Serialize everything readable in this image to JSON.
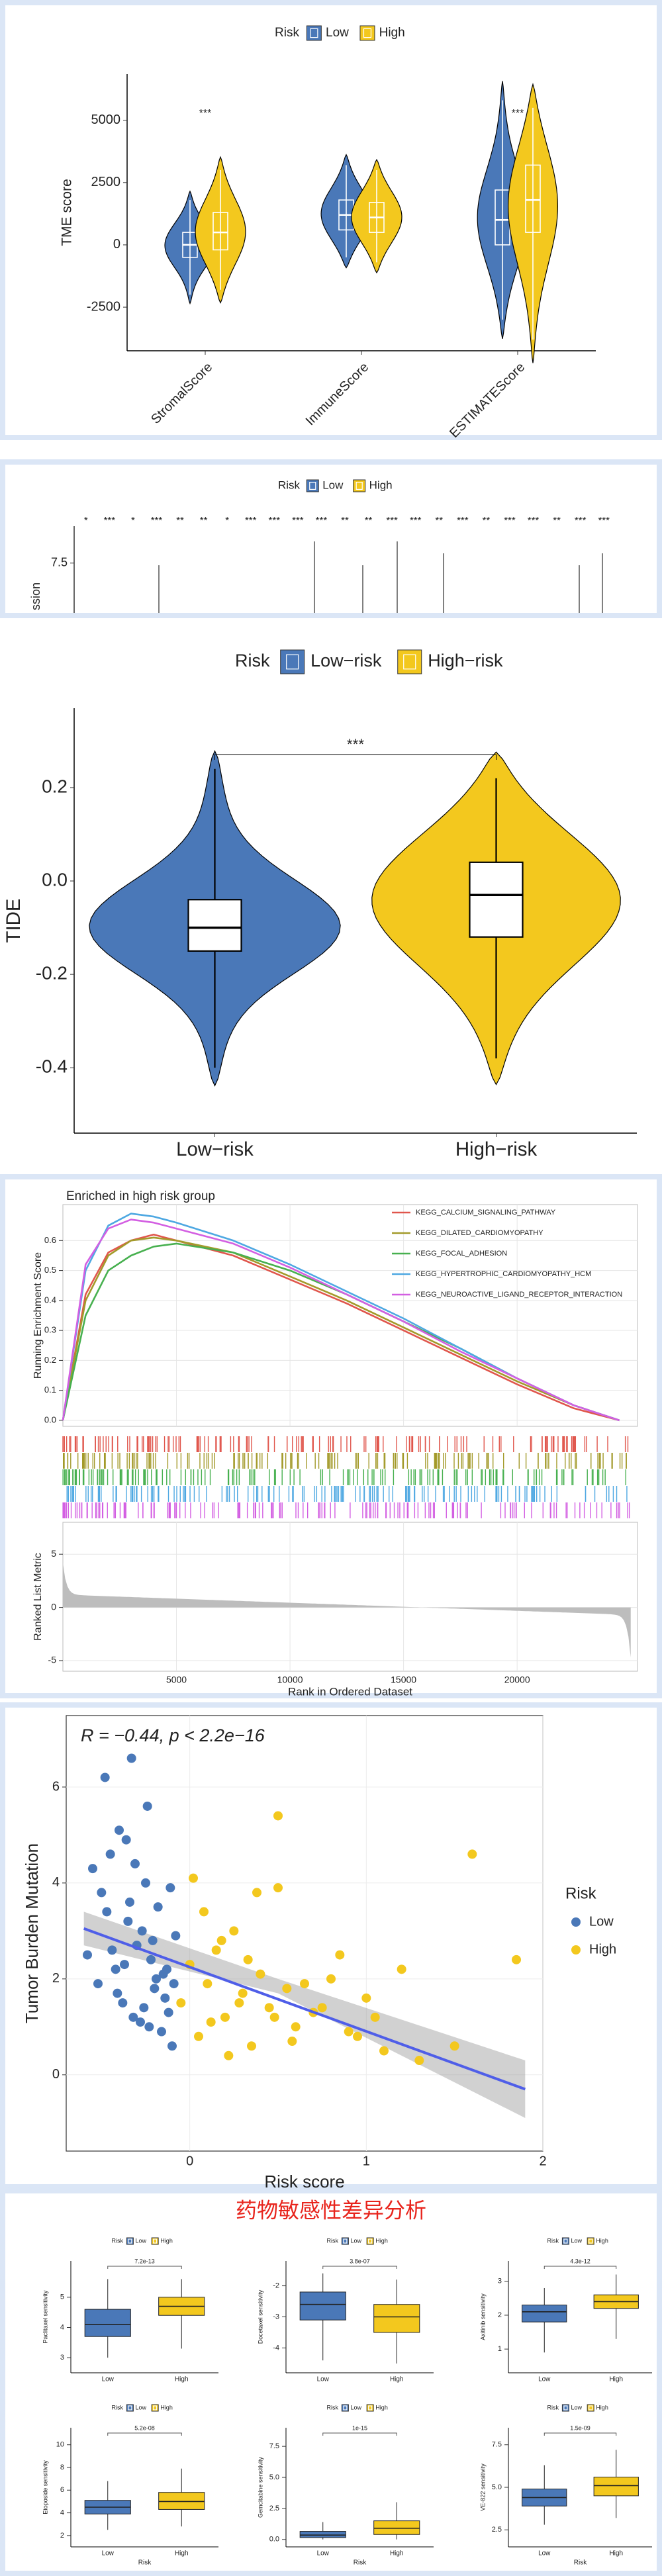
{
  "drug_title": "药物敏感性差异分析",
  "chart_data": [
    {
      "type": "violin",
      "legend_title": "Risk",
      "ylabel": "TME score",
      "categories": [
        "StromalScore",
        "ImmuneScore",
        "ESTIMATEScore"
      ],
      "annotations": [
        "***",
        null,
        "***"
      ],
      "series": [
        {
          "name": "Low",
          "color": "#4a78b8",
          "values": [
            {
              "min": -2000,
              "q1": -500,
              "median": 0,
              "q3": 500,
              "max": 1800
            },
            {
              "min": -500,
              "q1": 600,
              "median": 1200,
              "q3": 1800,
              "max": 3200
            },
            {
              "min": -3000,
              "q1": 0,
              "median": 1000,
              "q3": 2200,
              "max": 5800
            }
          ]
        },
        {
          "name": "High",
          "color": "#f3c81e",
          "values": [
            {
              "min": -1800,
              "q1": -200,
              "median": 500,
              "q3": 1300,
              "max": 3000
            },
            {
              "min": -700,
              "q1": 500,
              "median": 1100,
              "q3": 1700,
              "max": 3000
            },
            {
              "min": -3800,
              "q1": 500,
              "median": 1800,
              "q3": 3200,
              "max": 5500
            }
          ]
        }
      ],
      "box_fill": "none",
      "box_stroke": "#ffffff",
      "ylim": [
        -4250,
        6850
      ],
      "yticks": [
        -2500,
        0,
        2500,
        5000
      ]
    },
    {
      "type": "box_strip",
      "legend_title": "Risk",
      "legend": [
        "Low",
        "High"
      ],
      "colors": [
        "#4a78b8",
        "#f3c81e"
      ],
      "annotations": [
        "*",
        "***",
        "*",
        "***",
        "**",
        "**",
        "*",
        "***",
        "***",
        "***",
        "***",
        "**",
        "**",
        "***",
        "***",
        "**",
        "***",
        "**",
        "***",
        "***",
        "**",
        "***",
        "***"
      ],
      "ylabel": "ssion",
      "ylim": [
        4.8,
        9.5
      ],
      "yticks": [
        7.5
      ]
    },
    {
      "type": "violin",
      "legend_title": "Risk",
      "ylabel": "TIDE",
      "categories": [
        "Low−risk",
        "High−risk"
      ],
      "colors": [
        "#4a78b8",
        "#f3c81e"
      ],
      "annotations": [
        "***"
      ],
      "values": [
        {
          "min": -0.4,
          "q1": -0.15,
          "median": -0.1,
          "q3": -0.04,
          "max": 0.24
        },
        {
          "min": -0.38,
          "q1": -0.12,
          "median": -0.03,
          "q3": 0.04,
          "max": 0.22
        }
      ],
      "box_fill": "#ffffff",
      "box_stroke": "#000000",
      "ylim": [
        -0.54,
        0.37
      ],
      "yticks": [
        -0.4,
        -0.2,
        {
          "value": 0,
          "label": "0.0"
        },
        0.2
      ]
    },
    {
      "type": "gsea",
      "title": "Enriched in high risk group",
      "ylabel": "Running Enrichment Score",
      "ylabel2": "Ranked List Metric",
      "xlabel": "Rank in Ordered Dataset",
      "x": [
        0,
        1000,
        2000,
        3000,
        4000,
        5000,
        7500,
        10000,
        12500,
        15000,
        17500,
        20000,
        22500,
        24500
      ],
      "series": [
        {
          "name": "KEGG_CALCIUM_SIGNALING_PATHWAY",
          "color": "#e0564c",
          "values": [
            0,
            0.42,
            0.56,
            0.6,
            0.62,
            0.6,
            0.55,
            0.47,
            0.39,
            0.3,
            0.21,
            0.12,
            0.04,
            0
          ]
        },
        {
          "name": "KEGG_DILATED_CARDIOMYOPATHY",
          "color": "#a39a2a",
          "values": [
            0,
            0.4,
            0.55,
            0.6,
            0.61,
            0.6,
            0.56,
            0.48,
            0.4,
            0.31,
            0.22,
            0.13,
            0.05,
            0
          ]
        },
        {
          "name": "KEGG_FOCAL_ADHESION",
          "color": "#47b04f",
          "values": [
            0,
            0.35,
            0.5,
            0.55,
            0.58,
            0.59,
            0.56,
            0.5,
            0.42,
            0.33,
            0.24,
            0.14,
            0.05,
            0
          ]
        },
        {
          "name": "KEGG_HYPERTROPHIC_CARDIOMYOPATHY_HCM",
          "color": "#4ea8e2",
          "values": [
            0,
            0.5,
            0.65,
            0.69,
            0.68,
            0.66,
            0.6,
            0.52,
            0.43,
            0.34,
            0.24,
            0.14,
            0.05,
            0
          ]
        },
        {
          "name": "KEGG_NEUROACTIVE_LIGAND_RECEPTOR_INTERACTION",
          "color": "#d35fe2",
          "values": [
            0,
            0.52,
            0.64,
            0.67,
            0.66,
            0.64,
            0.59,
            0.51,
            0.42,
            0.33,
            0.23,
            0.14,
            0.05,
            0
          ]
        }
      ],
      "xlim": [
        0,
        25300
      ],
      "xticks": [
        5000,
        10000,
        15000,
        20000
      ],
      "ylim": [
        -0.02,
        0.72
      ],
      "yticks": [
        {
          "value": 0,
          "label": "0.0"
        },
        0.1,
        0.2,
        0.3,
        0.4,
        0.5,
        0.6
      ],
      "y2lim": [
        -6,
        8
      ],
      "y2ticks": [
        -5,
        0,
        5
      ]
    },
    {
      "type": "scatter",
      "annotation": "R = −0.44, p < 2.2e−16",
      "xlabel": "Risk score",
      "ylabel": "Tumor Burden Mutation",
      "legend_title": "Risk",
      "series": [
        {
          "name": "Low",
          "color": "#4a78b8",
          "x": [
            -0.55,
            -0.5,
            -0.45,
            -0.42,
            -0.4,
            -0.38,
            -0.35,
            -0.33,
            -0.3,
            -0.28,
            -0.25,
            -0.22,
            -0.2,
            -0.18,
            -0.15,
            -0.12,
            -0.1,
            -0.08,
            -0.52,
            -0.48,
            -0.44,
            -0.36,
            -0.32,
            -0.27,
            -0.24,
            -0.19,
            -0.14,
            -0.11,
            -0.47,
            -0.41,
            -0.37,
            -0.31,
            -0.26,
            -0.21,
            -0.16,
            -0.09,
            -0.58,
            -0.34,
            -0.23,
            -0.13
          ],
          "values": [
            4.3,
            3.8,
            4.6,
            2.2,
            5.1,
            1.5,
            3.2,
            6.6,
            2.7,
            1.1,
            4.0,
            2.4,
            1.8,
            3.5,
            2.1,
            1.3,
            0.6,
            2.9,
            1.9,
            6.2,
            2.6,
            4.9,
            1.2,
            3.0,
            5.6,
            2.0,
            1.6,
            3.9,
            3.4,
            1.7,
            2.3,
            4.4,
            1.4,
            2.8,
            0.9,
            1.9,
            2.5,
            3.6,
            1.0,
            2.2
          ]
        },
        {
          "name": "High",
          "color": "#f3c81e",
          "x": [
            -0.05,
            0.0,
            0.05,
            0.1,
            0.15,
            0.2,
            0.25,
            0.3,
            0.35,
            0.4,
            0.45,
            0.5,
            0.55,
            0.6,
            0.7,
            0.8,
            0.9,
            1.0,
            1.1,
            1.2,
            0.02,
            0.08,
            0.12,
            0.18,
            0.22,
            0.28,
            0.33,
            0.38,
            0.48,
            0.58,
            0.65,
            0.75,
            0.85,
            0.95,
            1.05,
            1.3,
            1.5,
            1.6,
            1.85,
            0.5
          ],
          "values": [
            1.5,
            2.3,
            0.8,
            1.9,
            2.6,
            1.2,
            3.0,
            1.7,
            0.6,
            2.1,
            1.4,
            5.4,
            1.8,
            1.0,
            1.3,
            2.0,
            0.9,
            1.6,
            0.5,
            2.2,
            4.1,
            3.4,
            1.1,
            2.8,
            0.4,
            1.5,
            2.4,
            3.8,
            1.2,
            0.7,
            1.9,
            1.4,
            2.5,
            0.8,
            1.2,
            0.3,
            0.6,
            4.6,
            2.4,
            3.9
          ]
        }
      ],
      "fit": {
        "color": "#4f5ee8",
        "x": [
          -0.6,
          1.9
        ],
        "values": [
          3.05,
          -0.3
        ]
      },
      "band": {
        "x": [
          -0.6,
          0.5,
          1.9
        ],
        "lower": [
          2.7,
          1.7,
          -0.9
        ],
        "upper": [
          3.4,
          2.0,
          0.3
        ]
      },
      "grid": true,
      "xlim": [
        -0.7,
        2.0
      ],
      "xticks": [
        0,
        1,
        2
      ],
      "ylim": [
        -1.59,
        7.49
      ],
      "yticks": [
        0,
        2,
        4,
        6
      ]
    },
    {
      "type": "box",
      "legend_title": "Risk",
      "categories": [
        "Low",
        "High"
      ],
      "colors": [
        "#4a78b8",
        "#f3c81e"
      ],
      "ylabel": "Paclitaxel sensitivity",
      "p_label": "7.2e-13",
      "values": [
        {
          "min": 3.0,
          "q1": 3.7,
          "median": 4.1,
          "q3": 4.6,
          "max": 5.6
        },
        {
          "min": 3.3,
          "q1": 4.4,
          "median": 4.7,
          "q3": 5.0,
          "max": 5.6
        }
      ],
      "ylim": [
        2.5,
        6.2
      ],
      "yticks": [
        3,
        4,
        5
      ]
    },
    {
      "type": "box",
      "legend_title": "Risk",
      "categories": [
        "Low",
        "High"
      ],
      "colors": [
        "#4a78b8",
        "#f3c81e"
      ],
      "ylabel": "Docetaxel sensitivity",
      "p_label": "3.8e-07",
      "values": [
        {
          "min": -4.4,
          "q1": -3.1,
          "median": -2.6,
          "q3": -2.2,
          "max": -1.6
        },
        {
          "min": -4.5,
          "q1": -3.5,
          "median": -3.0,
          "q3": -2.6,
          "max": -1.8
        }
      ],
      "ylim": [
        -4.8,
        -1.2
      ],
      "yticks": [
        -4,
        -3,
        -2
      ]
    },
    {
      "type": "box",
      "legend_title": "Risk",
      "categories": [
        "Low",
        "High"
      ],
      "colors": [
        "#4a78b8",
        "#f3c81e"
      ],
      "ylabel": "Axitinib sensitivity",
      "p_label": "4.3e-12",
      "values": [
        {
          "min": 0.9,
          "q1": 1.8,
          "median": 2.1,
          "q3": 2.3,
          "max": 2.8
        },
        {
          "min": 1.3,
          "q1": 2.2,
          "median": 2.4,
          "q3": 2.6,
          "max": 3.2
        }
      ],
      "ylim": [
        0.3,
        3.6
      ],
      "yticks": [
        1,
        2,
        3
      ]
    },
    {
      "type": "box",
      "legend_title": "Risk",
      "categories": [
        "Low",
        "High"
      ],
      "colors": [
        "#4a78b8",
        "#f3c81e"
      ],
      "ylabel": "Etoposide sensitivity",
      "xlabel": "Risk",
      "p_label": "5.2e-08",
      "values": [
        {
          "min": 2.5,
          "q1": 3.9,
          "median": 4.5,
          "q3": 5.1,
          "max": 6.8
        },
        {
          "min": 2.8,
          "q1": 4.3,
          "median": 5.0,
          "q3": 5.8,
          "max": 7.9
        }
      ],
      "ylim": [
        1,
        11.5
      ],
      "yticks": [
        2,
        4,
        6,
        8,
        10
      ]
    },
    {
      "type": "box",
      "legend_title": "Risk",
      "categories": [
        "Low",
        "High"
      ],
      "colors": [
        "#4a78b8",
        "#f3c81e"
      ],
      "ylabel": "Gemcitabine sensitivity",
      "xlabel": "Risk",
      "p_label": "1e-15",
      "values": [
        {
          "min": 0,
          "q1": 0.15,
          "median": 0.35,
          "q3": 0.65,
          "max": 1.4
        },
        {
          "min": 0,
          "q1": 0.4,
          "median": 0.9,
          "q3": 1.5,
          "max": 3.0
        }
      ],
      "ylim": [
        -0.6,
        9
      ],
      "yticks": [
        {
          "value": 0,
          "label": "0.0"
        },
        2.5,
        {
          "value": 5,
          "label": "5.0"
        },
        7.5
      ]
    },
    {
      "type": "box",
      "legend_title": "Risk",
      "categories": [
        "Low",
        "High"
      ],
      "colors": [
        "#4a78b8",
        "#f3c81e"
      ],
      "ylabel": "VE-822 sensitivity",
      "xlabel": "Risk",
      "p_label": "1.5e-09",
      "values": [
        {
          "min": 2.8,
          "q1": 3.9,
          "median": 4.4,
          "q3": 4.9,
          "max": 6.3
        },
        {
          "min": 3.2,
          "q1": 4.5,
          "median": 5.1,
          "q3": 5.6,
          "max": 7.2
        }
      ],
      "ylim": [
        1.5,
        8.5
      ],
      "yticks": [
        2.5,
        {
          "value": 5,
          "label": "5.0"
        },
        7.5
      ]
    }
  ]
}
